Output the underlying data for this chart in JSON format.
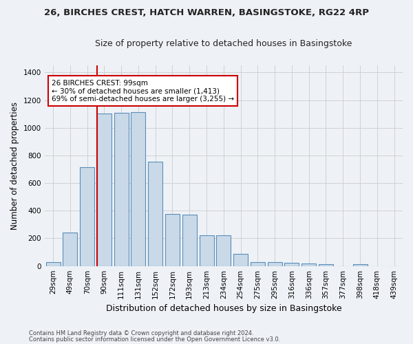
{
  "title_line1": "26, BIRCHES CREST, HATCH WARREN, BASINGSTOKE, RG22 4RP",
  "title_line2": "Size of property relative to detached houses in Basingstoke",
  "xlabel": "Distribution of detached houses by size in Basingstoke",
  "ylabel": "Number of detached properties",
  "categories": [
    "29sqm",
    "49sqm",
    "70sqm",
    "90sqm",
    "111sqm",
    "131sqm",
    "152sqm",
    "172sqm",
    "193sqm",
    "213sqm",
    "234sqm",
    "254sqm",
    "275sqm",
    "295sqm",
    "316sqm",
    "336sqm",
    "357sqm",
    "377sqm",
    "398sqm",
    "418sqm",
    "439sqm"
  ],
  "values": [
    30,
    240,
    715,
    1105,
    1110,
    1115,
    755,
    375,
    370,
    220,
    220,
    90,
    28,
    28,
    22,
    18,
    12,
    0,
    12,
    0,
    0
  ],
  "bar_color": "#c9d9e8",
  "bar_edge_color": "#5b8db8",
  "grid_color": "#d0d0d0",
  "vline_color": "#cc0000",
  "annotation_text": "26 BIRCHES CREST: 99sqm\n← 30% of detached houses are smaller (1,413)\n69% of semi-detached houses are larger (3,255) →",
  "annotation_box_color": "#ffffff",
  "annotation_box_edge_color": "#cc0000",
  "footer_line1": "Contains HM Land Registry data © Crown copyright and database right 2024.",
  "footer_line2": "Contains public sector information licensed under the Open Government Licence v3.0.",
  "ylim": [
    0,
    1450
  ],
  "yticks": [
    0,
    200,
    400,
    600,
    800,
    1000,
    1200,
    1400
  ],
  "background_color": "#eef2f7",
  "plot_bg_color": "#eef2f7",
  "title1_fontsize": 9.5,
  "title2_fontsize": 9.0,
  "ylabel_fontsize": 8.5,
  "xlabel_fontsize": 9.0,
  "tick_fontsize": 7.5,
  "footer_fontsize": 6.0,
  "annotation_fontsize": 7.5,
  "vline_xindex": 2.575
}
